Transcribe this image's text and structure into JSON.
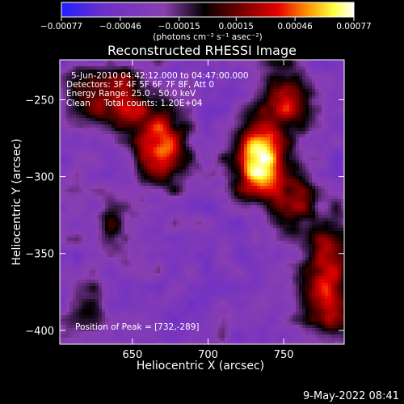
{
  "chart_data": {
    "type": "heatmap",
    "title": "Reconstructed RHESSI Image",
    "xlabel": "Heliocentric X (arcsec)",
    "ylabel": "Heliocentric Y (arcsec)",
    "xlim": [
      602,
      790
    ],
    "ylim": [
      -409,
      -224
    ],
    "x_ticks": [
      650,
      700,
      750
    ],
    "x_tick_labels": [
      "650",
      "700",
      "750"
    ],
    "y_ticks": [
      -250,
      -300,
      -350,
      -400
    ],
    "y_tick_labels": [
      "−250",
      "−300",
      "−350",
      "−400"
    ],
    "colorbar": {
      "colormap": "heat",
      "range": [
        -0.00077,
        0.00077
      ],
      "tick_values": [
        -0.00077,
        -0.00046,
        -0.00015,
        0.00015,
        0.00046,
        0.00077
      ],
      "tick_labels": [
        "−0.00077",
        "−0.00046",
        "−0.00015",
        "0.00015",
        "0.00046",
        "0.00077"
      ],
      "unit_label": "(photons cm⁻² s⁻¹ asec⁻²)",
      "colors": [
        "#2020ff",
        "#6c2ec8",
        "#8a3fb0",
        "#000000",
        "#7a0000",
        "#e60000",
        "#ff9000",
        "#ffff40",
        "#ffffff"
      ]
    },
    "annotations": [
      "5-Jun-2010 04:42:12.000 to 04:47:00.000",
      "Detectors: 3F 4F 5F 6F 7F 8F, Att 0",
      "Energy Range: 25.0 - 50.0 keV",
      "Clean     Total counts: 1.20E+04"
    ],
    "peak_label": "Position of Peak = [732,-289]",
    "peak": [
      732,
      -289
    ],
    "sources": [
      {
        "x": 732,
        "y": -289,
        "intensity": 1.0
      },
      {
        "x": 670,
        "y": -280,
        "intensity": 0.78
      },
      {
        "x": 645,
        "y": -252,
        "intensity": 0.6
      },
      {
        "x": 750,
        "y": -250,
        "intensity": 0.55
      },
      {
        "x": 755,
        "y": -315,
        "intensity": 0.5
      },
      {
        "x": 780,
        "y": -350,
        "intensity": 0.5
      },
      {
        "x": 778,
        "y": -385,
        "intensity": 0.55
      },
      {
        "x": 620,
        "y": -250,
        "intensity": 0.35
      },
      {
        "x": 640,
        "y": -330,
        "intensity": 0.25
      },
      {
        "x": 622,
        "y": -385,
        "intensity": 0.2
      }
    ]
  },
  "footer": {
    "timestamp": "9-May-2022 08:41"
  }
}
